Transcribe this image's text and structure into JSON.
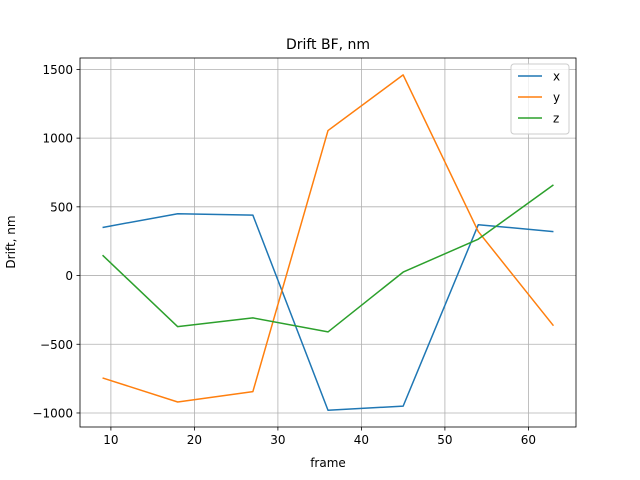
{
  "chart_data": {
    "type": "line",
    "title": "Drift BF, nm",
    "xlabel": "frame",
    "ylabel": "Drift, nm",
    "x": [
      9,
      18,
      27,
      36,
      45,
      54,
      63
    ],
    "xlim": [
      6.3,
      65.7
    ],
    "ylim": [
      -1102,
      1583
    ],
    "xticks": [
      10,
      20,
      30,
      40,
      50,
      60
    ],
    "yticks": [
      -1000,
      -500,
      0,
      500,
      1000,
      1500
    ],
    "xtick_labels": [
      "10",
      "20",
      "30",
      "40",
      "50",
      "60"
    ],
    "ytick_labels": [
      "−1000",
      "−500",
      "0",
      "500",
      "1000",
      "1500"
    ],
    "grid": true,
    "legend_position": "top-right",
    "series": [
      {
        "name": "x",
        "color": "#1f77b4",
        "values": [
          350,
          450,
          440,
          -980,
          -950,
          370,
          320
        ]
      },
      {
        "name": "y",
        "color": "#ff7f0e",
        "values": [
          -745,
          -920,
          -845,
          1055,
          1460,
          320,
          -365
        ]
      },
      {
        "name": "z",
        "color": "#2ca02c",
        "values": [
          148,
          -372,
          -308,
          -410,
          25,
          265,
          660
        ]
      }
    ]
  }
}
